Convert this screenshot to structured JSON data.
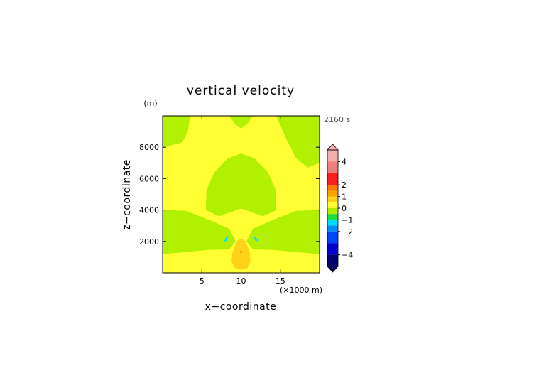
{
  "chart_data": {
    "type": "heatmap",
    "title": "vertical velocity",
    "time_label": "2160 s",
    "xlabel": "x−coordinate",
    "x_unit": "(×1000 m)",
    "ylabel": "z−coordinate",
    "y_unit": "(m)",
    "xlim": [
      0,
      20
    ],
    "ylim": [
      0,
      10000
    ],
    "x_ticks": [
      {
        "value": 5,
        "label": "5"
      },
      {
        "value": 10,
        "label": "10"
      },
      {
        "value": 15,
        "label": "15"
      }
    ],
    "y_ticks": [
      {
        "value": 2000,
        "label": "2000"
      },
      {
        "value": 4000,
        "label": "4000"
      },
      {
        "value": 6000,
        "label": "6000"
      },
      {
        "value": 8000,
        "label": "8000"
      }
    ],
    "colorbar": {
      "range": [
        -5,
        5
      ],
      "ticks": [
        {
          "value": 4,
          "label": "4"
        },
        {
          "value": 2,
          "label": "2"
        },
        {
          "value": 1,
          "label": "1"
        },
        {
          "value": 0,
          "label": "0"
        },
        {
          "value": -1,
          "label": "−1"
        },
        {
          "value": -2,
          "label": "−2"
        },
        {
          "value": -4,
          "label": "−4"
        }
      ],
      "bands": [
        {
          "from": 4,
          "to": 5,
          "color": "#f7b0b0"
        },
        {
          "from": 3,
          "to": 4,
          "color": "#f08080"
        },
        {
          "from": 2,
          "to": 3,
          "color": "#ff2020"
        },
        {
          "from": 1.5,
          "to": 2,
          "color": "#ff7a00"
        },
        {
          "from": 1,
          "to": 1.5,
          "color": "#ffa500"
        },
        {
          "from": 0.5,
          "to": 1,
          "color": "#ffd21a"
        },
        {
          "from": 0,
          "to": 0.5,
          "color": "#ffff33"
        },
        {
          "from": -0.5,
          "to": 0,
          "color": "#b0f000"
        },
        {
          "from": -1,
          "to": -0.5,
          "color": "#20e040"
        },
        {
          "from": -1.5,
          "to": -1,
          "color": "#00e0ff"
        },
        {
          "from": -2,
          "to": -1.5,
          "color": "#0090ff"
        },
        {
          "from": -3,
          "to": -2,
          "color": "#0044ff"
        },
        {
          "from": -4,
          "to": -3,
          "color": "#0000d0"
        },
        {
          "from": -5,
          "to": -4,
          "color": "#000070"
        }
      ]
    },
    "field": {
      "background_color": "#ffff33",
      "regions": [
        {
          "category": "-0.5 to 0",
          "color": "#b0f000",
          "shape": "top-left",
          "points": [
            [
              0,
              10000
            ],
            [
              3.5,
              10000
            ],
            [
              3.2,
              9000
            ],
            [
              2.5,
              8300
            ],
            [
              0,
              8000
            ]
          ]
        },
        {
          "category": "-0.5 to 0",
          "color": "#b0f000",
          "shape": "top-centre",
          "points": [
            [
              8.5,
              10000
            ],
            [
              9.2,
              9500
            ],
            [
              10,
              9200
            ],
            [
              10.8,
              9500
            ],
            [
              11.5,
              10000
            ]
          ]
        },
        {
          "category": "-0.5 to 0",
          "color": "#b0f000",
          "shape": "top-right",
          "points": [
            [
              14.5,
              10000
            ],
            [
              20,
              10000
            ],
            [
              20,
              7000
            ],
            [
              18.5,
              6700
            ],
            [
              17,
              7300
            ],
            [
              15.8,
              8500
            ],
            [
              15,
              9400
            ]
          ]
        },
        {
          "category": "-0.5 to 0",
          "color": "#b0f000",
          "shape": "dome",
          "points": [
            [
              5.5,
              4000
            ],
            [
              5.6,
              5300
            ],
            [
              6.6,
              6400
            ],
            [
              8.3,
              7300
            ],
            [
              10,
              7600
            ],
            [
              11.7,
              7300
            ],
            [
              13.4,
              6400
            ],
            [
              14.4,
              5300
            ],
            [
              14.5,
              4000
            ],
            [
              12.8,
              3600
            ],
            [
              10,
              4100
            ],
            [
              7.2,
              3600
            ]
          ]
        },
        {
          "category": "-0.5 to 0",
          "color": "#b0f000",
          "shape": "left-band",
          "points": [
            [
              0,
              4000
            ],
            [
              3,
              3950
            ],
            [
              6.3,
              3300
            ],
            [
              8.5,
              2800
            ],
            [
              9.3,
              2000
            ],
            [
              8.5,
              1500
            ],
            [
              5.5,
              1450
            ],
            [
              2.5,
              1300
            ],
            [
              0,
              1200
            ]
          ]
        },
        {
          "category": "-0.5 to 0",
          "color": "#b0f000",
          "shape": "right-band",
          "points": [
            [
              20,
              4000
            ],
            [
              17,
              3950
            ],
            [
              13.7,
              3300
            ],
            [
              11.5,
              2800
            ],
            [
              10.7,
              2000
            ],
            [
              11.5,
              1500
            ],
            [
              14.5,
              1450
            ],
            [
              17.5,
              1300
            ],
            [
              20,
              1200
            ]
          ]
        },
        {
          "category": "0 to 0.5",
          "color": "#ffff33",
          "shape": "plume",
          "points": [
            [
              9.3,
              2200
            ],
            [
              9.6,
              2650
            ],
            [
              10,
              2800
            ],
            [
              10.4,
              2650
            ],
            [
              10.7,
              2200
            ],
            [
              10.6,
              1700
            ],
            [
              10.1,
              1500
            ],
            [
              9.6,
              1600
            ]
          ]
        },
        {
          "category": "0.5 to 1",
          "color": "#ffd21a",
          "shape": "plume-core",
          "points": [
            [
              8.8,
              700
            ],
            [
              8.9,
              1300
            ],
            [
              9.4,
              2000
            ],
            [
              10,
              2200
            ],
            [
              10.6,
              2000
            ],
            [
              11.1,
              1300
            ],
            [
              11.2,
              700
            ],
            [
              10.8,
              300
            ],
            [
              10,
              200
            ],
            [
              9.2,
              300
            ]
          ]
        },
        {
          "category": "1 to 1.5",
          "color": "#ffa500",
          "shape": "plume-centre",
          "points": [
            [
              9.8,
              1350
            ],
            [
              10,
              1500
            ],
            [
              10.2,
              1350
            ],
            [
              10,
              1200
            ]
          ]
        },
        {
          "category": "-1.5 to -1",
          "color": "#00e0ff",
          "shape": "left-lobe",
          "points": [
            [
              7.8,
              2000
            ],
            [
              8.1,
              2250
            ],
            [
              8.4,
              2350
            ],
            [
              8.2,
              2050
            ]
          ]
        },
        {
          "category": "-1.5 to -1",
          "color": "#00e0ff",
          "shape": "right-lobe",
          "points": [
            [
              12.2,
              2000
            ],
            [
              11.9,
              2250
            ],
            [
              11.6,
              2350
            ],
            [
              11.8,
              2050
            ]
          ]
        }
      ]
    }
  }
}
